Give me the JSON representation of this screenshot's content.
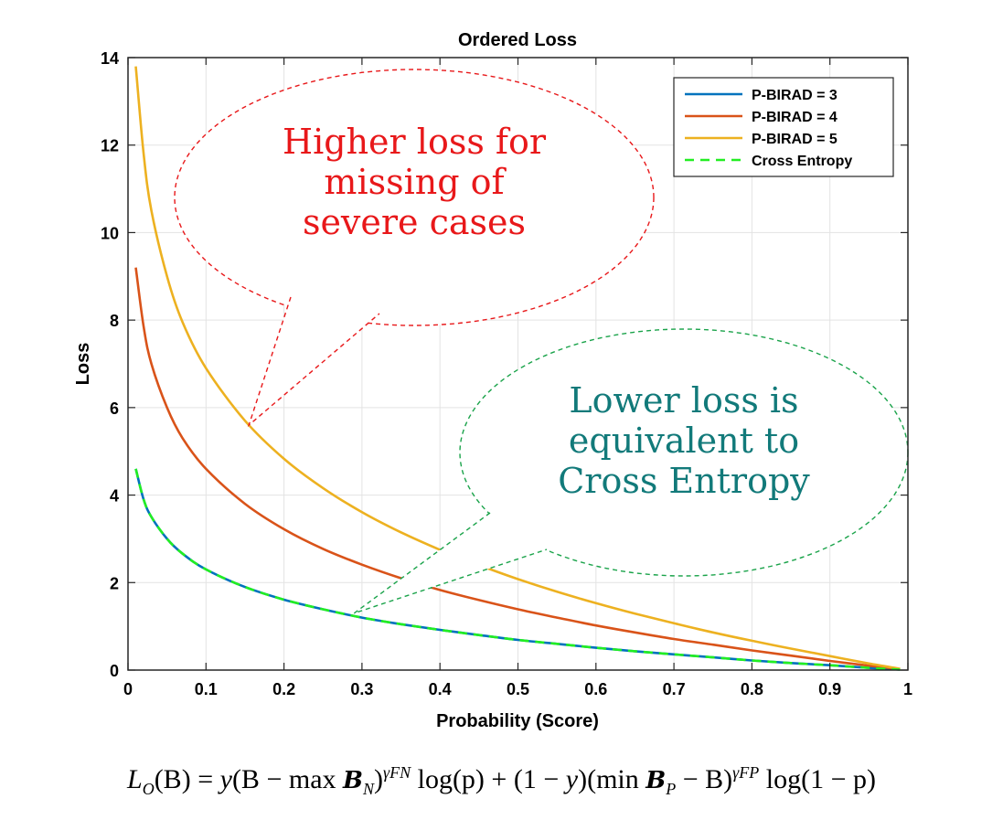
{
  "chart_data": {
    "type": "line",
    "title": "Ordered Loss",
    "xlabel": "Probability (Score)",
    "ylabel": "Loss",
    "xlim": [
      0,
      1
    ],
    "ylim": [
      0,
      14
    ],
    "xticks": [
      0,
      0.1,
      0.2,
      0.3,
      0.4,
      0.5,
      0.6,
      0.7,
      0.8,
      0.9,
      1
    ],
    "xtick_labels": [
      "0",
      "0.1",
      "0.2",
      "0.3",
      "0.4",
      "0.5",
      "0.6",
      "0.7",
      "0.8",
      "0.9",
      "1"
    ],
    "yticks": [
      0,
      2,
      4,
      6,
      8,
      10,
      12,
      14
    ],
    "ytick_labels": [
      "0",
      "2",
      "4",
      "6",
      "8",
      "10",
      "12",
      "14"
    ],
    "grid": true,
    "legend_position": "top-right",
    "x": [
      0.01,
      0.02,
      0.03,
      0.05,
      0.07,
      0.1,
      0.15,
      0.2,
      0.25,
      0.3,
      0.35,
      0.4,
      0.45,
      0.5,
      0.55,
      0.6,
      0.65,
      0.7,
      0.75,
      0.8,
      0.85,
      0.9,
      0.95,
      0.99
    ],
    "series": [
      {
        "name": "P-BIRAD = 3",
        "color": "#0072BD",
        "style": "solid",
        "values": [
          4.6,
          3.9,
          3.5,
          3.0,
          2.66,
          2.3,
          1.9,
          1.61,
          1.39,
          1.2,
          1.05,
          0.92,
          0.8,
          0.69,
          0.6,
          0.51,
          0.43,
          0.36,
          0.29,
          0.22,
          0.16,
          0.11,
          0.05,
          0.01
        ]
      },
      {
        "name": "P-BIRAD = 4",
        "color": "#D95319",
        "style": "solid",
        "values": [
          9.2,
          7.85,
          7.0,
          6.0,
          5.3,
          4.6,
          3.8,
          3.22,
          2.77,
          2.41,
          2.1,
          1.83,
          1.6,
          1.39,
          1.2,
          1.02,
          0.86,
          0.71,
          0.58,
          0.45,
          0.33,
          0.21,
          0.1,
          0.02
        ]
      },
      {
        "name": "P-BIRAD = 5",
        "color": "#EDB120",
        "style": "solid",
        "values": [
          13.8,
          11.8,
          10.5,
          9.0,
          7.95,
          6.9,
          5.7,
          4.83,
          4.16,
          3.61,
          3.15,
          2.75,
          2.4,
          2.08,
          1.79,
          1.53,
          1.29,
          1.07,
          0.86,
          0.67,
          0.49,
          0.32,
          0.15,
          0.03
        ]
      },
      {
        "name": "Cross Entropy",
        "color": "#22EE22",
        "style": "dashed",
        "values": [
          4.6,
          3.9,
          3.5,
          3.0,
          2.66,
          2.3,
          1.9,
          1.61,
          1.39,
          1.2,
          1.05,
          0.92,
          0.8,
          0.69,
          0.6,
          0.51,
          0.43,
          0.36,
          0.29,
          0.22,
          0.16,
          0.11,
          0.05,
          0.01
        ]
      }
    ],
    "annotations": [
      {
        "lines": [
          "Higher loss for",
          "missing of",
          "severe cases"
        ],
        "color": "#E8181A",
        "pointer_x": 0.155,
        "pointer_y": 5.6
      },
      {
        "lines": [
          "Lower loss is",
          "equivalent to",
          "Cross Entropy"
        ],
        "color": "#127A7A",
        "bubble_color": "#1AA34A",
        "pointer_x": 0.29,
        "pointer_y": 1.3
      }
    ]
  },
  "formula": {
    "lhs_symbol": "L",
    "lhs_sub": "O",
    "lhs_arg": "(B)",
    "eq": " = ",
    "y": "y",
    "part1_open": "(B − max ",
    "calB": "B",
    "sub_N": "N",
    "part1_close": ")",
    "sup_gamma_fn": "γFN",
    "log_p": " log(p) + (1 − ",
    "y2": "y",
    "part2_open": ")(min ",
    "sub_P": "P",
    "part2_close": " − B)",
    "sup_gamma_fp": "γFP",
    "log_1mp": " log(1 − p)"
  }
}
